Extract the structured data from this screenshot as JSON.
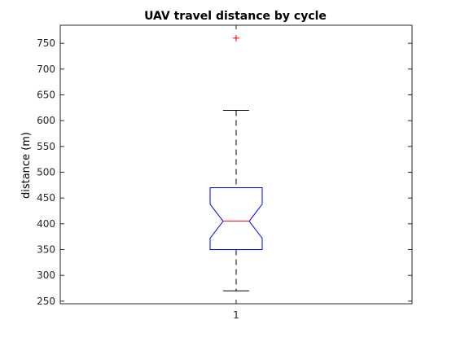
{
  "chart_data": {
    "type": "boxplot",
    "title": "UAV travel distance by cycle",
    "xlabel": "",
    "ylabel": "distance (m)",
    "ylim": [
      245,
      785
    ],
    "yticks": [
      250,
      300,
      350,
      400,
      450,
      500,
      550,
      600,
      650,
      700,
      750
    ],
    "categories": [
      "1"
    ],
    "notched": true,
    "boxes": [
      {
        "category": "1",
        "q1": 350,
        "median": 405,
        "q3": 470,
        "notch_low": 372,
        "notch_high": 438,
        "whisker_low": 270,
        "whisker_high": 620,
        "outliers": [
          760
        ]
      }
    ],
    "grid": false,
    "colors": {
      "box": "#0000ff",
      "median": "#ff0000",
      "whisker": "#000000",
      "outlier": "#ff0000",
      "axis": "#262626"
    }
  }
}
